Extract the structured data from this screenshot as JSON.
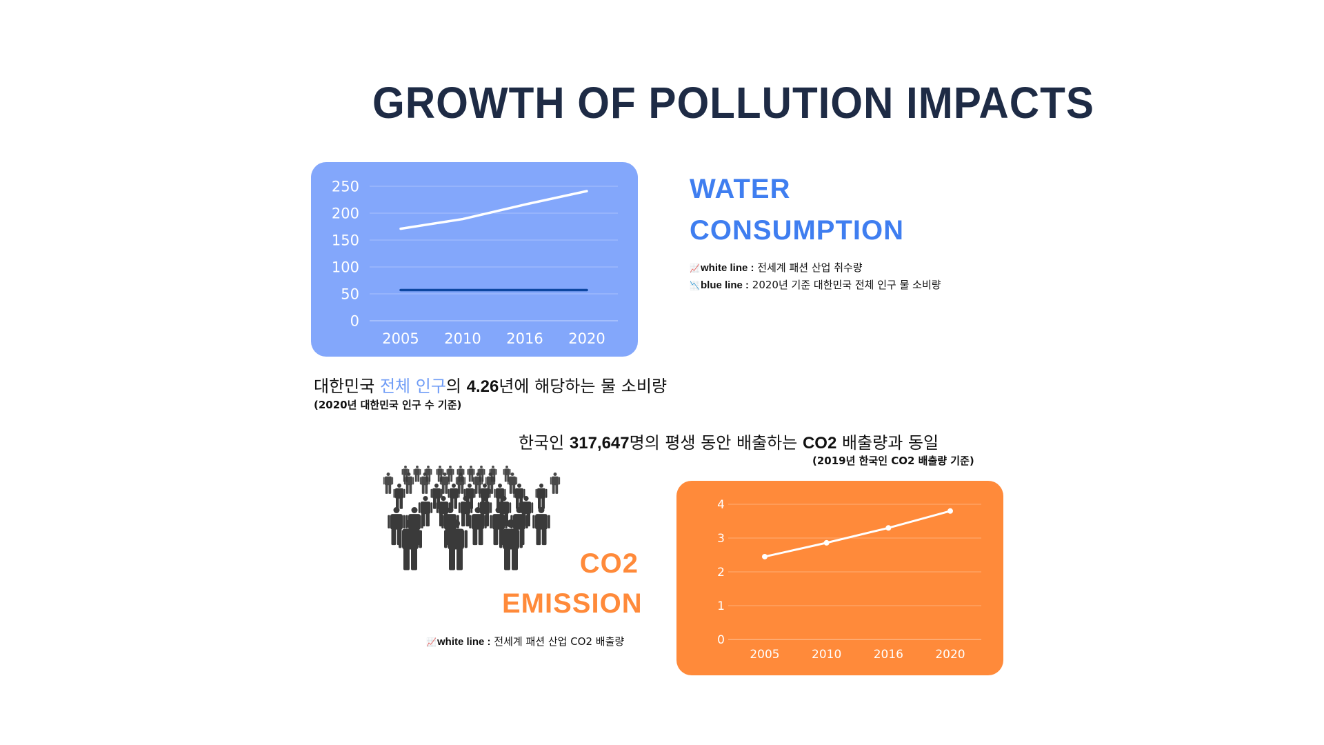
{
  "title": "GROWTH OF POLLUTION IMPACTS",
  "water": {
    "heading": "WATER CONSUMPTION",
    "legend": [
      {
        "icon": "chart-increasing-icon",
        "label": "white line :",
        "text": "전세계 패션 산업 취수량"
      },
      {
        "icon": "chart-decreasing-icon",
        "label": "blue line :",
        "text": "2020년 기준 대한민국 전체 인구 물 소비량"
      }
    ],
    "stat": {
      "part1": "대한민국 ",
      "highlight": "전체 인구",
      "part2": "의 ",
      "number": "4.26",
      "part3": "년에 해당하는 물 소비량"
    },
    "stat_sub": "(2020년 대한민국 인구 수 기준)"
  },
  "co2": {
    "heading_line1": "CO2",
    "heading_line2": "EMISSION",
    "legend": [
      {
        "icon": "chart-increasing-icon",
        "label": "white line :",
        "text": "전세계 패션 산업 CO2 배출량"
      }
    ],
    "stat": {
      "part1": "한국인 ",
      "number": "317,647",
      "part2": "명의  평생 동안 배출하는 ",
      "bold2": "CO2",
      "part3": " 배출량과  동일"
    },
    "stat_sub": "(2019년 한국인 CO2 배출량 기준)"
  },
  "colors": {
    "title": "#1e2b45",
    "water_accent": "#3f7ef0",
    "water_card": "#83a7fb",
    "co2_accent": "#ff8a3a",
    "co2_card": "#ff8a3a",
    "blue_line": "#0d47a1",
    "crowd": "#3a3a3a"
  },
  "chart_data": [
    {
      "type": "line",
      "x": [
        "2005",
        "2010",
        "2016",
        "2020"
      ],
      "series": [
        {
          "color": "#ffffff",
          "values": [
            171,
            189,
            216,
            241
          ]
        },
        {
          "color": "#0d47a1",
          "values": [
            57,
            57,
            57,
            57
          ]
        }
      ],
      "ylim": [
        0,
        250
      ],
      "yticks": [
        "0",
        "50",
        "100",
        "150",
        "200",
        "250"
      ],
      "grid": true,
      "markers": false
    },
    {
      "type": "line",
      "x": [
        "2005",
        "2010",
        "2016",
        "2020"
      ],
      "series": [
        {
          "color": "#ffffff",
          "values": [
            2.45,
            2.86,
            3.3,
            3.8
          ]
        }
      ],
      "ylim": [
        0,
        4
      ],
      "yticks": [
        "0",
        "1",
        "2",
        "3",
        "4"
      ],
      "grid": true,
      "markers": true
    }
  ]
}
